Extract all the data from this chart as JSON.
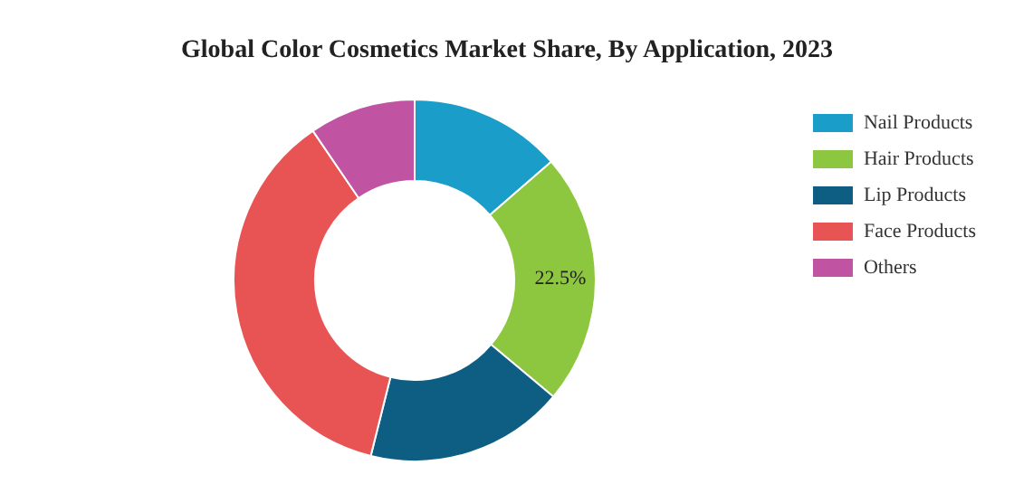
{
  "chart_data": {
    "type": "donut",
    "title": "Global Color Cosmetics Market Share, By Application, 2023",
    "categories": [
      "Nail Products",
      "Hair Products",
      "Lip Products",
      "Face Products",
      "Others"
    ],
    "values": [
      13.6,
      22.5,
      17.8,
      36.6,
      9.5
    ],
    "value_labels": [
      null,
      "22.5%",
      null,
      null,
      null
    ],
    "colors": [
      "#1b9dc9",
      "#8dc63f",
      "#0d5e82",
      "#e85454",
      "#c153a3"
    ],
    "legend": "top right"
  }
}
